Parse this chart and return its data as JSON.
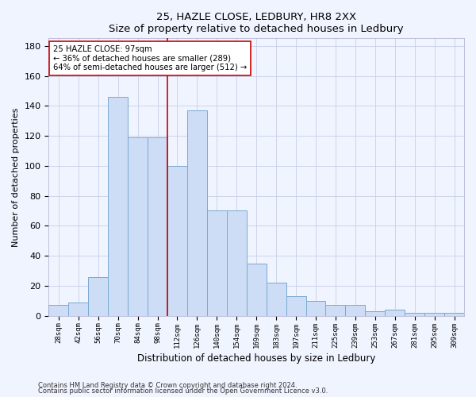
{
  "title1": "25, HAZLE CLOSE, LEDBURY, HR8 2XX",
  "title2": "Size of property relative to detached houses in Ledbury",
  "xlabel": "Distribution of detached houses by size in Ledbury",
  "ylabel": "Number of detached properties",
  "categories": [
    "28sqm",
    "42sqm",
    "56sqm",
    "70sqm",
    "84sqm",
    "98sqm",
    "112sqm",
    "126sqm",
    "140sqm",
    "154sqm",
    "169sqm",
    "183sqm",
    "197sqm",
    "211sqm",
    "225sqm",
    "239sqm",
    "253sqm",
    "267sqm",
    "281sqm",
    "295sqm",
    "309sqm"
  ],
  "values": [
    7,
    9,
    26,
    146,
    119,
    119,
    100,
    137,
    70,
    70,
    35,
    22,
    13,
    10,
    7,
    7,
    3,
    4,
    2,
    2,
    2
  ],
  "bar_color": "#ccddf5",
  "bar_edge_color": "#7aaad0",
  "vline_x_index": 5,
  "vline_color": "#cc0000",
  "annotation_text": "25 HAZLE CLOSE: 97sqm\n← 36% of detached houses are smaller (289)\n64% of semi-detached houses are larger (512) →",
  "annotation_box_color": "white",
  "annotation_box_edge": "#cc0000",
  "ylim": [
    0,
    185
  ],
  "yticks": [
    0,
    20,
    40,
    60,
    80,
    100,
    120,
    140,
    160,
    180
  ],
  "footer1": "Contains HM Land Registry data © Crown copyright and database right 2024.",
  "footer2": "Contains public sector information licensed under the Open Government Licence v3.0.",
  "bg_color": "#f0f4ff",
  "grid_color": "#c8d0e8"
}
